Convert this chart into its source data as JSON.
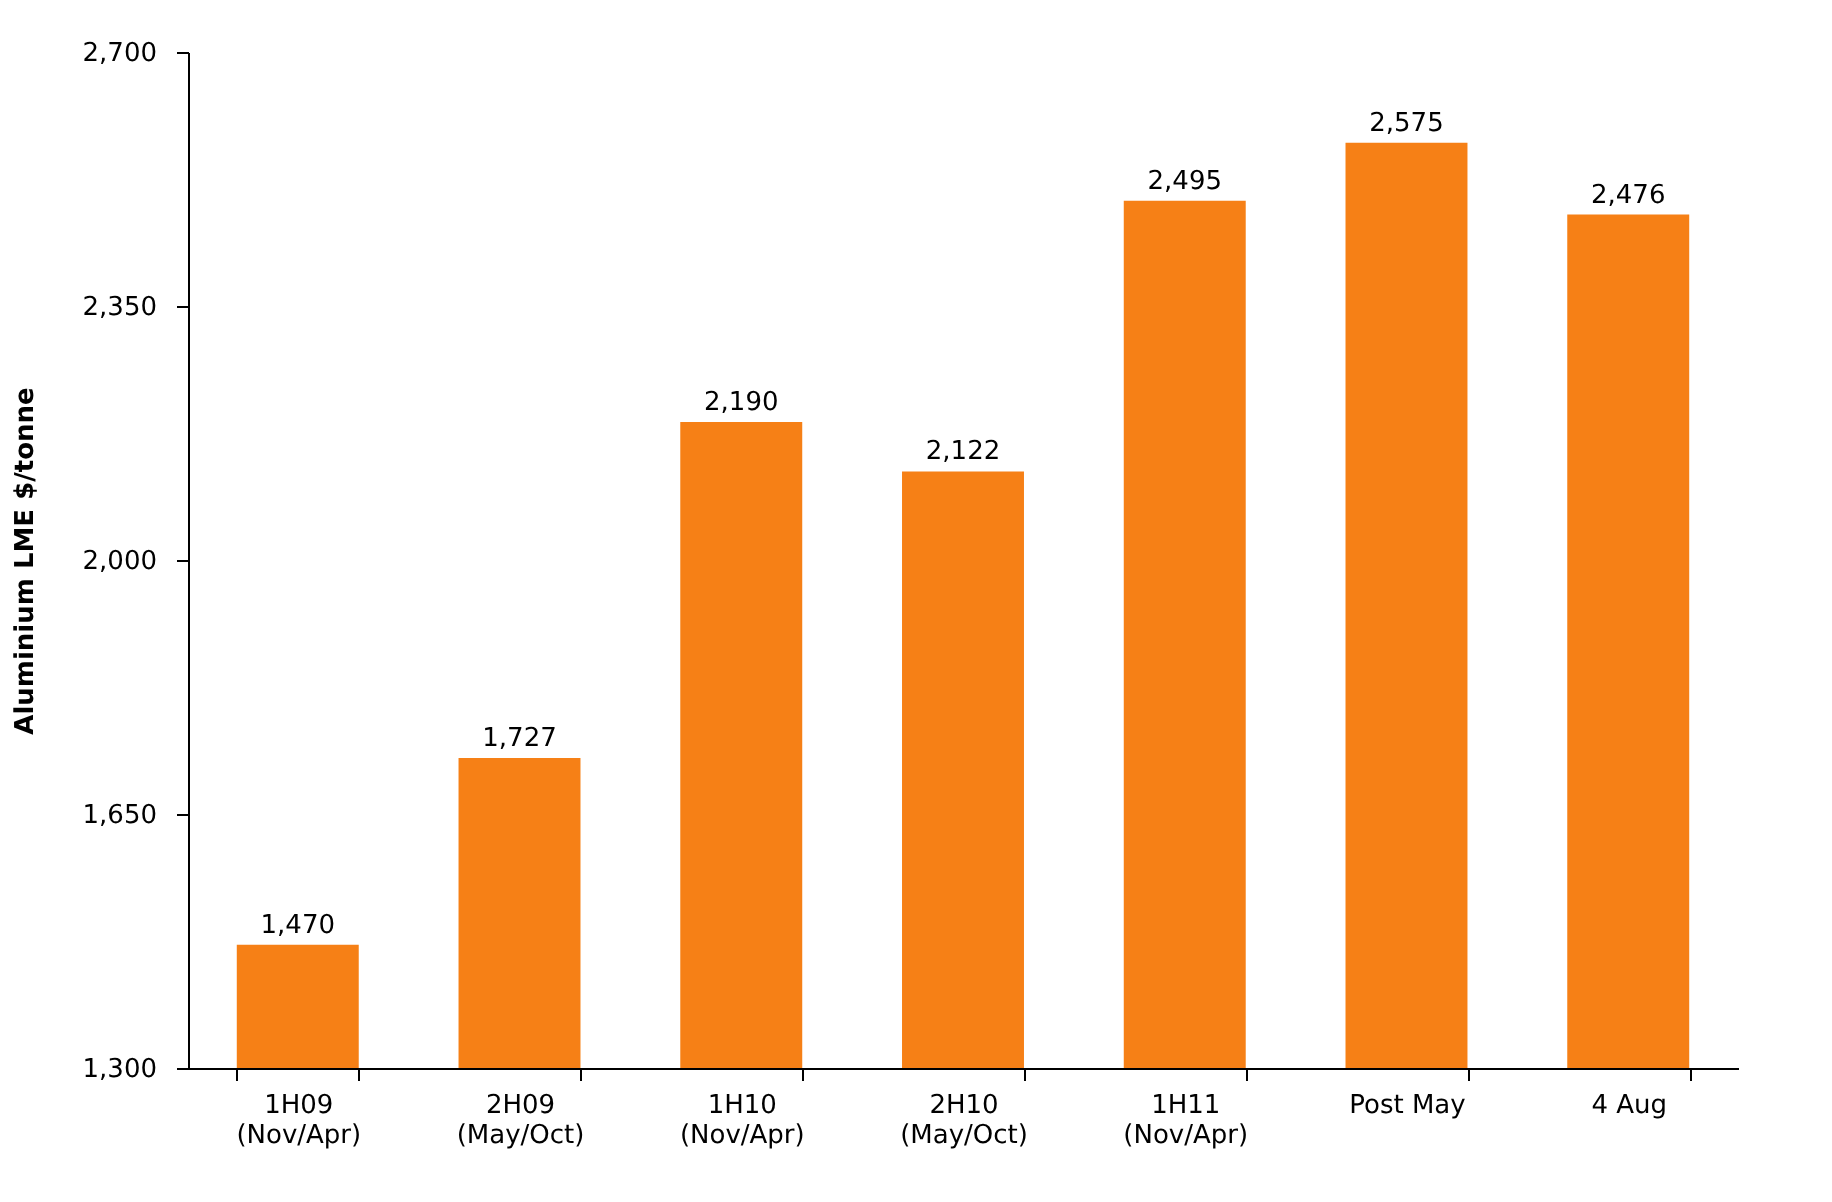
{
  "chart_data": {
    "type": "bar",
    "ylabel": "Aluminium LME $/tonne",
    "categories": [
      "1H09\n(Nov/Apr)",
      "2H09\n(May/Oct)",
      "1H10\n(Nov/Apr)",
      "2H10\n(May/Oct)",
      "1H11\n(Nov/Apr)",
      "Post May",
      "4 Aug"
    ],
    "values": [
      1470,
      1727,
      2190,
      2122,
      2495,
      2575,
      2476
    ],
    "value_labels": [
      "1,470",
      "1,727",
      "2,190",
      "2,122",
      "2,495",
      "2,575",
      "2,476"
    ],
    "color": "#f68016",
    "ylim": [
      1300,
      2700
    ],
    "yticks": [
      {
        "value": 1300,
        "label": "1,300"
      },
      {
        "value": 1650,
        "label": "1,650"
      },
      {
        "value": 2000,
        "label": "2,000"
      },
      {
        "value": 2350,
        "label": "2,350"
      },
      {
        "value": 2700,
        "label": "2,700"
      }
    ],
    "grid": false
  }
}
